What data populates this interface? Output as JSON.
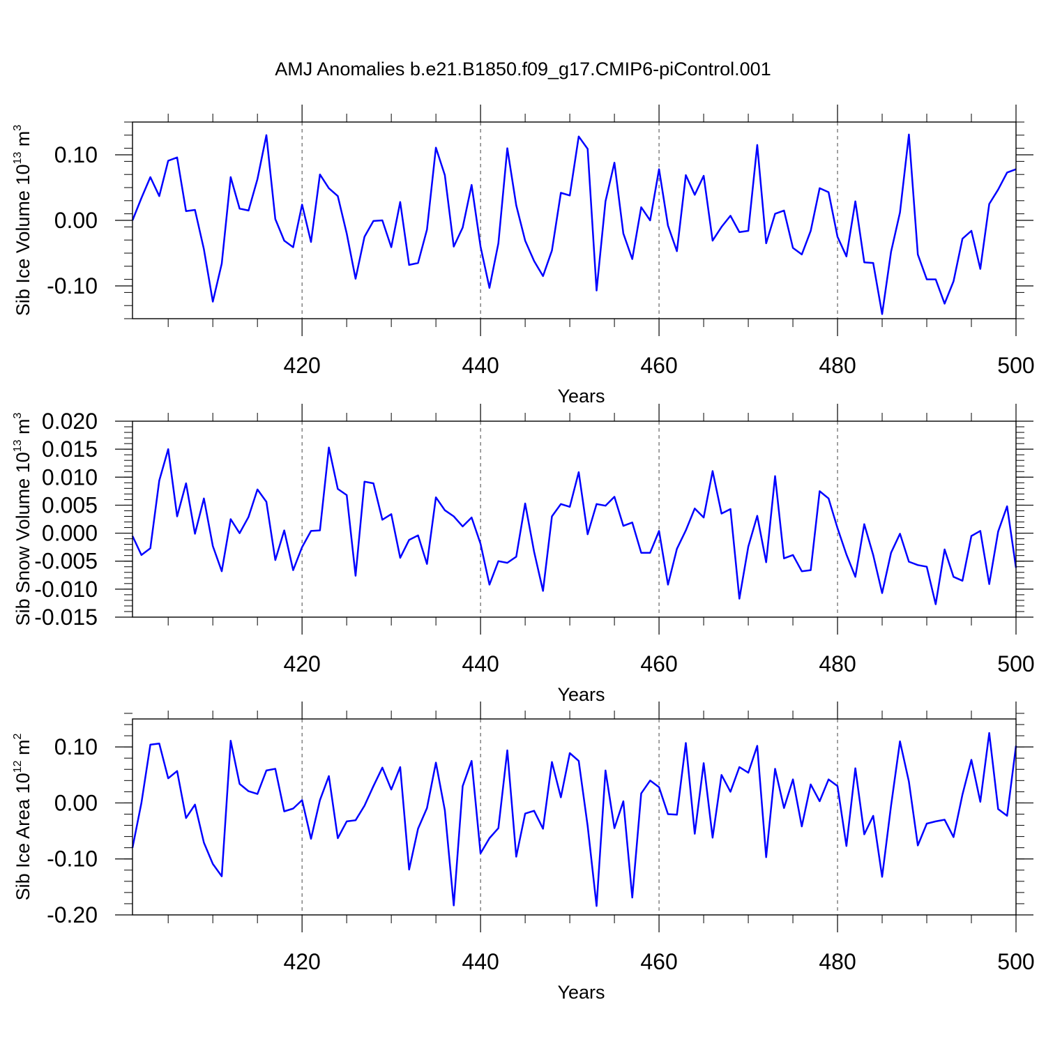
{
  "figure": {
    "title": "AMJ Anomalies b.e21.B1850.f09_g17.CMIP6-piControl.001"
  },
  "chart_data": [
    {
      "type": "line",
      "xlabel": "Years",
      "ylabel_text": "Sib Ice Volume 10",
      "ylabel_exp": "13",
      "ylabel_unit": " m",
      "ylabel_unit_exp": "3",
      "xlim": [
        401,
        500
      ],
      "ylim": [
        -0.15,
        0.15
      ],
      "xticks": [
        420,
        440,
        460,
        480,
        500
      ],
      "xtick_labels": [
        "420",
        "440",
        "460",
        "480",
        "500"
      ],
      "yticks": [
        -0.1,
        0.0,
        0.1
      ],
      "ytick_labels": [
        "-0.10",
        "0.00",
        "0.10"
      ],
      "grid_x": true,
      "color": "#0000ff",
      "x_start": 401,
      "values": [
        0.0,
        0.034,
        0.066,
        0.037,
        0.091,
        0.096,
        0.014,
        0.016,
        -0.044,
        -0.124,
        -0.066,
        0.066,
        0.018,
        0.015,
        0.063,
        0.13,
        0.002,
        -0.031,
        -0.041,
        0.024,
        -0.033,
        0.07,
        0.049,
        0.037,
        -0.02,
        -0.089,
        -0.025,
        -0.001,
        0.0,
        -0.041,
        0.028,
        -0.068,
        -0.065,
        -0.014,
        0.111,
        0.069,
        -0.04,
        -0.011,
        0.054,
        -0.04,
        -0.103,
        -0.035,
        0.11,
        0.023,
        -0.031,
        -0.062,
        -0.085,
        -0.046,
        0.042,
        0.038,
        0.128,
        0.109,
        -0.107,
        0.029,
        0.088,
        -0.02,
        -0.059,
        0.02,
        0.0,
        0.078,
        -0.008,
        -0.047,
        0.069,
        0.039,
        0.068,
        -0.031,
        -0.01,
        0.007,
        -0.018,
        -0.016,
        0.115,
        -0.035,
        0.01,
        0.015,
        -0.042,
        -0.052,
        -0.016,
        0.049,
        0.043,
        -0.025,
        -0.055,
        0.029,
        -0.064,
        -0.065,
        -0.143,
        -0.048,
        0.012,
        0.131,
        -0.052,
        -0.09,
        -0.09,
        -0.127,
        -0.093,
        -0.028,
        -0.016,
        -0.074,
        0.025,
        0.047,
        0.073,
        0.078
      ]
    },
    {
      "type": "line",
      "xlabel": "Years",
      "ylabel_text": "Sib Snow Volume 10",
      "ylabel_exp": "13",
      "ylabel_unit": " m",
      "ylabel_unit_exp": "3",
      "xlim": [
        401,
        500
      ],
      "ylim": [
        -0.015,
        0.02
      ],
      "xticks": [
        420,
        440,
        460,
        480,
        500
      ],
      "xtick_labels": [
        "420",
        "440",
        "460",
        "480",
        "500"
      ],
      "yticks": [
        -0.015,
        -0.01,
        -0.005,
        0.0,
        0.005,
        0.01,
        0.015,
        0.02
      ],
      "ytick_labels": [
        "-0.015",
        "-0.010",
        "-0.005",
        "0.000",
        "0.005",
        "0.010",
        "0.015",
        "0.020"
      ],
      "grid_x": true,
      "color": "#0000ff",
      "x_start": 401,
      "values": [
        -0.0005,
        -0.0039,
        -0.0027,
        0.0094,
        0.015,
        0.003,
        0.0089,
        -0.0001,
        0.0062,
        -0.0023,
        -0.0068,
        0.0025,
        0.0,
        0.0029,
        0.0078,
        0.0056,
        -0.0048,
        0.0005,
        -0.0066,
        -0.0025,
        0.0004,
        0.0005,
        0.0153,
        0.0079,
        0.0068,
        -0.0076,
        0.0092,
        0.0089,
        0.0024,
        0.0034,
        -0.0044,
        -0.0012,
        -0.0004,
        -0.0055,
        0.0064,
        0.0041,
        0.003,
        0.0012,
        0.0028,
        -0.0019,
        -0.0092,
        -0.005,
        -0.0053,
        -0.0042,
        0.0053,
        -0.0033,
        -0.0103,
        0.003,
        0.0052,
        0.0047,
        0.0109,
        -0.0002,
        0.0052,
        0.0049,
        0.0065,
        0.0013,
        0.0019,
        -0.0035,
        -0.0035,
        0.0004,
        -0.0092,
        -0.0028,
        0.0005,
        0.0044,
        0.0028,
        0.0111,
        0.0035,
        0.0043,
        -0.0117,
        -0.0024,
        0.0031,
        -0.0052,
        0.0102,
        -0.0045,
        -0.0039,
        -0.0068,
        -0.0066,
        0.0075,
        0.0062,
        0.0009,
        -0.0038,
        -0.0078,
        0.0016,
        -0.0039,
        -0.0107,
        -0.0035,
        -0.0001,
        -0.0051,
        -0.0057,
        -0.006,
        -0.0127,
        -0.0029,
        -0.0078,
        -0.0085,
        -0.0005,
        0.0004,
        -0.0091,
        0.0003,
        0.0048,
        -0.0062
      ]
    },
    {
      "type": "line",
      "xlabel": "Years",
      "ylabel_text": "Sib Ice Area 10",
      "ylabel_exp": "12",
      "ylabel_unit": " m",
      "ylabel_unit_exp": "2",
      "xlim": [
        401,
        500
      ],
      "ylim": [
        -0.2,
        0.15
      ],
      "xticks": [
        420,
        440,
        460,
        480,
        500
      ],
      "xtick_labels": [
        "420",
        "440",
        "460",
        "480",
        "500"
      ],
      "yticks": [
        -0.2,
        -0.1,
        0.0,
        0.1
      ],
      "ytick_labels": [
        "-0.20",
        "-0.10",
        "0.00",
        "0.10"
      ],
      "grid_x": true,
      "color": "#0000ff",
      "x_start": 401,
      "values": [
        -0.08,
        0.0,
        0.104,
        0.106,
        0.044,
        0.057,
        -0.027,
        -0.003,
        -0.071,
        -0.109,
        -0.131,
        0.111,
        0.034,
        0.021,
        0.016,
        0.058,
        0.061,
        -0.015,
        -0.01,
        0.005,
        -0.064,
        0.005,
        0.048,
        -0.063,
        -0.033,
        -0.031,
        -0.005,
        0.03,
        0.063,
        0.024,
        0.064,
        -0.119,
        -0.046,
        -0.009,
        0.072,
        -0.013,
        -0.183,
        0.03,
        0.075,
        -0.09,
        -0.063,
        -0.045,
        0.094,
        -0.096,
        -0.019,
        -0.014,
        -0.046,
        0.073,
        0.01,
        0.089,
        0.075,
        -0.041,
        -0.184,
        0.058,
        -0.045,
        0.003,
        -0.169,
        0.017,
        0.04,
        0.028,
        -0.02,
        -0.021,
        0.107,
        -0.055,
        0.071,
        -0.062,
        0.05,
        0.02,
        0.064,
        0.054,
        0.102,
        -0.097,
        0.061,
        -0.009,
        0.042,
        -0.042,
        0.033,
        0.003,
        0.042,
        0.03,
        -0.077,
        0.062,
        -0.056,
        -0.023,
        -0.132,
        -0.005,
        0.11,
        0.038,
        -0.076,
        -0.037,
        -0.033,
        -0.03,
        -0.061,
        0.015,
        0.077,
        0.002,
        0.125,
        -0.011,
        -0.023,
        0.102
      ]
    }
  ]
}
